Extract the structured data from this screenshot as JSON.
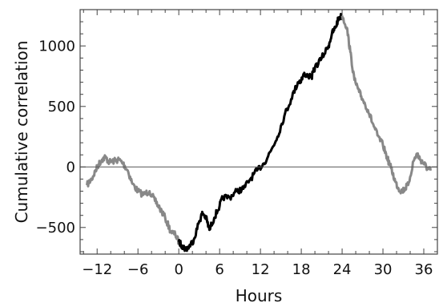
{
  "chart_data": {
    "type": "line",
    "title": "",
    "xlabel": "Hours",
    "ylabel": "Cumulative correlation",
    "xlim": [
      -14.5,
      38
    ],
    "ylim": [
      -720,
      1300
    ],
    "x_ticks": [
      -12,
      -6,
      0,
      6,
      12,
      18,
      24,
      30,
      36
    ],
    "x_tick_labels": [
      "−12",
      "−6",
      "0",
      "6",
      "12",
      "18",
      "24",
      "30",
      "36"
    ],
    "y_ticks": [
      -500,
      0,
      500,
      1000
    ],
    "y_tick_labels": [
      "−500",
      "0",
      "500",
      "1000"
    ],
    "reference_line_y": 0,
    "grid": false,
    "colors": {
      "outside_window": "#888888",
      "inside_window": "#000000",
      "frame": "#444444"
    },
    "series": [
      {
        "color": "gray",
        "x": [
          -13.5,
          -12.8,
          -12.3,
          -11.8,
          -11.3,
          -10.8,
          -10.2,
          -9.5,
          -8.8,
          -8.2,
          -7.5,
          -6.8,
          -6.0,
          -5.2,
          -4.3,
          -3.5,
          -2.8,
          -2.0,
          -1.2,
          -0.5,
          0.0
        ],
        "y": [
          -150,
          -100,
          -40,
          20,
          60,
          80,
          40,
          50,
          60,
          30,
          -30,
          -140,
          -200,
          -230,
          -200,
          -280,
          -340,
          -420,
          -530,
          -560,
          -620
        ]
      },
      {
        "color": "black",
        "x": [
          0.0,
          0.5,
          1.0,
          1.5,
          2.2,
          3.0,
          3.5,
          4.0,
          4.5,
          5.2,
          6.0,
          6.5,
          7.5,
          8.5,
          9.5,
          10.5,
          11.5,
          12.5,
          13.5,
          14.5,
          15.5,
          16.5,
          17.5,
          18.0,
          18.5,
          19.5,
          20.0,
          21.0,
          22.0,
          22.5,
          23.0,
          23.5,
          24.0
        ],
        "y": [
          -620,
          -650,
          -680,
          -660,
          -600,
          -450,
          -380,
          -420,
          -520,
          -420,
          -320,
          -250,
          -250,
          -200,
          -180,
          -100,
          -30,
          30,
          130,
          250,
          420,
          560,
          700,
          720,
          770,
          740,
          820,
          900,
          1000,
          1100,
          1150,
          1230,
          1250
        ]
      },
      {
        "color": "gray",
        "x": [
          24.0,
          24.7,
          25.2,
          25.8,
          26.5,
          27.0,
          27.8,
          28.5,
          29.2,
          30.0,
          30.6,
          31.2,
          31.8,
          32.3,
          32.8,
          33.2,
          33.7,
          34.5,
          35.0,
          35.5,
          36.0,
          36.5,
          37.0
        ],
        "y": [
          1250,
          1150,
          950,
          720,
          620,
          560,
          470,
          360,
          260,
          180,
          80,
          -10,
          -120,
          -180,
          -200,
          -180,
          -150,
          50,
          110,
          60,
          30,
          -10,
          -30
        ]
      }
    ]
  }
}
